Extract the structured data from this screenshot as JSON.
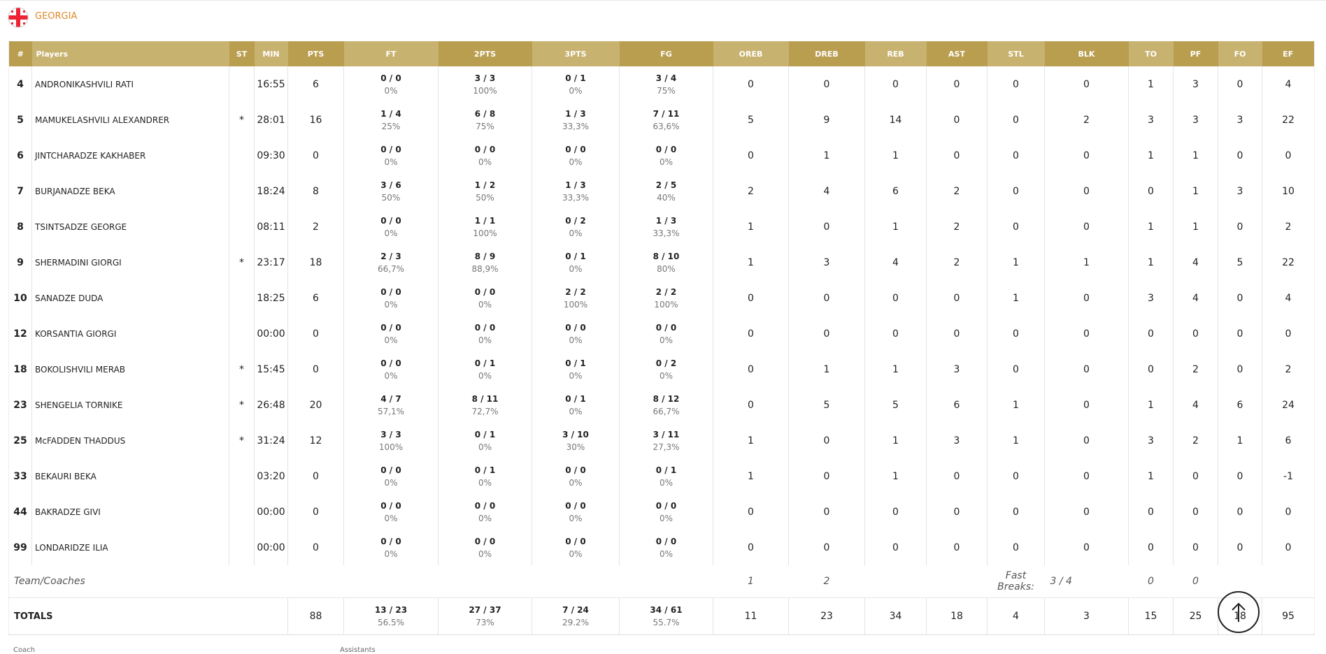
{
  "team": {
    "name": "GEORGIA"
  },
  "table": {
    "columns": [
      "#",
      "Players",
      "ST",
      "MIN",
      "PTS",
      "FT",
      "2PTS",
      "3PTS",
      "FG",
      "OREB",
      "DREB",
      "REB",
      "AST",
      "STL",
      "BLK",
      "TO",
      "PF",
      "FO",
      "EF"
    ],
    "rows": [
      [
        4,
        "ANDRONIKASHVILI RATI",
        null,
        "16:55",
        6,
        [
          "0 / 0",
          "0%"
        ],
        [
          "3 / 3",
          "100%"
        ],
        [
          "0 / 1",
          "0%"
        ],
        [
          "3 / 4",
          "75%"
        ],
        0,
        0,
        0,
        0,
        0,
        0,
        1,
        3,
        0,
        4
      ],
      [
        5,
        "MAMUKELASHVILI ALEXANDRER",
        "*",
        "28:01",
        16,
        [
          "1 / 4",
          "25%"
        ],
        [
          "6 / 8",
          "75%"
        ],
        [
          "1 / 3",
          "33,3%"
        ],
        [
          "7 / 11",
          "63,6%"
        ],
        5,
        9,
        14,
        0,
        0,
        2,
        3,
        3,
        3,
        22
      ],
      [
        6,
        "JINTCHARADZE KAKHABER",
        null,
        "09:30",
        0,
        [
          "0 / 0",
          "0%"
        ],
        [
          "0 / 0",
          "0%"
        ],
        [
          "0 / 0",
          "0%"
        ],
        [
          "0 / 0",
          "0%"
        ],
        0,
        1,
        1,
        0,
        0,
        0,
        1,
        1,
        0,
        0
      ],
      [
        7,
        "BURJANADZE BEKA",
        null,
        "18:24",
        8,
        [
          "3 / 6",
          "50%"
        ],
        [
          "1 / 2",
          "50%"
        ],
        [
          "1 / 3",
          "33,3%"
        ],
        [
          "2 / 5",
          "40%"
        ],
        2,
        4,
        6,
        2,
        0,
        0,
        0,
        1,
        3,
        10
      ],
      [
        8,
        "TSINTSADZE GEORGE",
        null,
        "08:11",
        2,
        [
          "0 / 0",
          "0%"
        ],
        [
          "1 / 1",
          "100%"
        ],
        [
          "0 / 2",
          "0%"
        ],
        [
          "1 / 3",
          "33,3%"
        ],
        1,
        0,
        1,
        2,
        0,
        0,
        1,
        1,
        0,
        2
      ],
      [
        9,
        "SHERMADINI GIORGI",
        "*",
        "23:17",
        18,
        [
          "2 / 3",
          "66,7%"
        ],
        [
          "8 / 9",
          "88,9%"
        ],
        [
          "0 / 1",
          "0%"
        ],
        [
          "8 / 10",
          "80%"
        ],
        1,
        3,
        4,
        2,
        1,
        1,
        1,
        4,
        5,
        22
      ],
      [
        10,
        "SANADZE DUDA",
        null,
        "18:25",
        6,
        [
          "0 / 0",
          "0%"
        ],
        [
          "0 / 0",
          "0%"
        ],
        [
          "2 / 2",
          "100%"
        ],
        [
          "2 / 2",
          "100%"
        ],
        0,
        0,
        0,
        0,
        1,
        0,
        3,
        4,
        0,
        4
      ],
      [
        12,
        "KORSANTIA GIORGI",
        null,
        "00:00",
        0,
        [
          "0 / 0",
          "0%"
        ],
        [
          "0 / 0",
          "0%"
        ],
        [
          "0 / 0",
          "0%"
        ],
        [
          "0 / 0",
          "0%"
        ],
        0,
        0,
        0,
        0,
        0,
        0,
        0,
        0,
        0,
        0
      ],
      [
        18,
        "BOKOLISHVILI MERAB",
        "*",
        "15:45",
        0,
        [
          "0 / 0",
          "0%"
        ],
        [
          "0 / 1",
          "0%"
        ],
        [
          "0 / 1",
          "0%"
        ],
        [
          "0 / 2",
          "0%"
        ],
        0,
        1,
        1,
        3,
        0,
        0,
        0,
        2,
        0,
        2
      ],
      [
        23,
        "SHENGELIA TORNIKE",
        "*",
        "26:48",
        20,
        [
          "4 / 7",
          "57,1%"
        ],
        [
          "8 / 11",
          "72,7%"
        ],
        [
          "0 / 1",
          "0%"
        ],
        [
          "8 / 12",
          "66,7%"
        ],
        0,
        5,
        5,
        6,
        1,
        0,
        1,
        4,
        6,
        24
      ],
      [
        25,
        "McFADDEN THADDUS",
        "*",
        "31:24",
        12,
        [
          "3 / 3",
          "100%"
        ],
        [
          "0 / 1",
          "0%"
        ],
        [
          "3 / 10",
          "30%"
        ],
        [
          "3 / 11",
          "27,3%"
        ],
        1,
        0,
        1,
        3,
        1,
        0,
        3,
        2,
        1,
        6
      ],
      [
        33,
        "BEKAURI BEKA",
        null,
        "03:20",
        0,
        [
          "0 / 0",
          "0%"
        ],
        [
          "0 / 1",
          "0%"
        ],
        [
          "0 / 0",
          "0%"
        ],
        [
          "0 / 1",
          "0%"
        ],
        1,
        0,
        1,
        0,
        0,
        0,
        1,
        0,
        0,
        -1
      ],
      [
        44,
        "BAKRADZE GIVI",
        null,
        "00:00",
        0,
        [
          "0 / 0",
          "0%"
        ],
        [
          "0 / 0",
          "0%"
        ],
        [
          "0 / 0",
          "0%"
        ],
        [
          "0 / 0",
          "0%"
        ],
        0,
        0,
        0,
        0,
        0,
        0,
        0,
        0,
        0,
        0
      ],
      [
        99,
        "LONDARIDZE ILIA",
        null,
        "00:00",
        0,
        [
          "0 / 0",
          "0%"
        ],
        [
          "0 / 0",
          "0%"
        ],
        [
          "0 / 0",
          "0%"
        ],
        [
          "0 / 0",
          "0%"
        ],
        0,
        0,
        0,
        0,
        0,
        0,
        0,
        0,
        0,
        0
      ]
    ],
    "team_row": {
      "label": "Team/Coaches",
      "oreb": 1,
      "dreb": 2,
      "fast_breaks_label": "Fast Breaks:",
      "fast_breaks": "3 / 4",
      "to": 0,
      "pf": 0
    },
    "totals": {
      "label": "TOTALS",
      "cells": [
        88,
        [
          "13 / 23",
          "56.5%"
        ],
        [
          "27 / 37",
          "73%"
        ],
        [
          "7 / 24",
          "29.2%"
        ],
        [
          "34 / 61",
          "55.7%"
        ],
        11,
        23,
        34,
        18,
        4,
        3,
        15,
        25,
        18,
        95
      ]
    }
  },
  "footer": {
    "coach_label": "Coach",
    "assistants_label": "Assistants"
  }
}
